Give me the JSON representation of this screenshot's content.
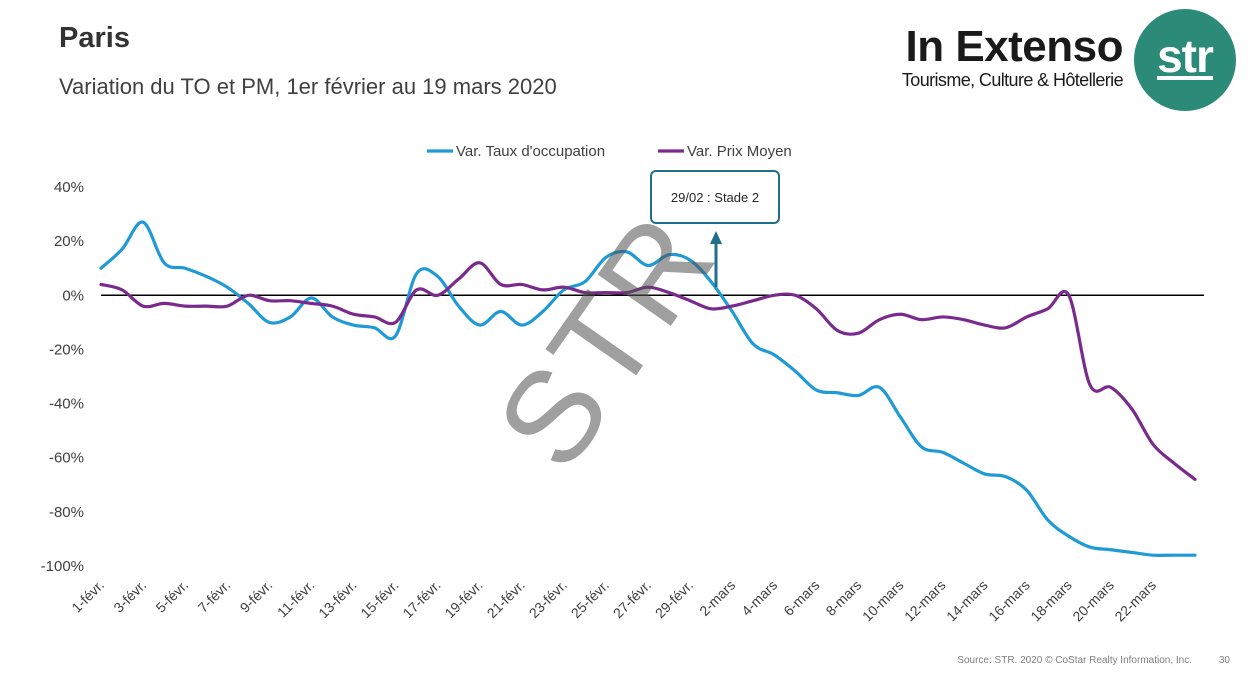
{
  "header": {
    "title": "Paris",
    "subtitle": "Variation du TO et PM, 1er février au 19 mars 2020"
  },
  "brand": {
    "name": "In Extenso",
    "tagline": "Tourisme, Culture & Hôtellerie",
    "logo_text": "str",
    "logo_color": "#2c8a78"
  },
  "watermark": "STR",
  "annotation": {
    "text": "29/02 : Stade 2",
    "at": "29-févr."
  },
  "footer": {
    "source": "Source: STR. 2020 © CoStar Realty Information, Inc.",
    "page": "30"
  },
  "chart_data": {
    "type": "line",
    "title": "",
    "legend_position": "top-center",
    "ylim": [
      -100,
      40
    ],
    "y_ticks": [
      "40%",
      "20%",
      "0%",
      "-20%",
      "-40%",
      "-60%",
      "-80%",
      "-100%"
    ],
    "x_tick_labels": [
      "1-févr.",
      "3-févr.",
      "5-févr.",
      "7-févr.",
      "9-févr.",
      "11-févr.",
      "13-févr.",
      "15-févr.",
      "17-févr.",
      "19-févr.",
      "21-févr.",
      "23-févr.",
      "25-févr.",
      "27-févr.",
      "29-févr.",
      "2-mars",
      "4-mars",
      "6-mars",
      "8-mars",
      "10-mars",
      "12-mars",
      "14-mars",
      "16-mars",
      "18-mars",
      "20-mars",
      "22-mars"
    ],
    "series": [
      {
        "name": "Var. Taux d'occupation",
        "color": "#1f9ad6",
        "values": [
          10,
          17,
          27,
          12,
          10,
          7,
          3,
          -3,
          -10,
          -8,
          -1,
          -8,
          -11,
          -12,
          -15,
          8,
          7,
          -4,
          -11,
          -6,
          -11,
          -6,
          2,
          5,
          14,
          16,
          11,
          15,
          13,
          5,
          -6,
          -18,
          -22,
          -28,
          -35,
          -36,
          -37,
          -34,
          -45,
          -56,
          -58,
          -62,
          -66,
          -67,
          -72,
          -83,
          -89,
          -93,
          -94,
          -95,
          -96,
          -96,
          -96
        ]
      },
      {
        "name": "Var. Prix Moyen",
        "color": "#7a2a8c",
        "values": [
          4,
          2,
          -4,
          -3,
          -4,
          -4,
          -4,
          0,
          -2,
          -2,
          -3,
          -4,
          -7,
          -8,
          -10,
          2,
          0,
          6,
          12,
          4,
          4,
          2,
          3,
          1,
          1,
          1,
          3,
          1,
          -2,
          -5,
          -4,
          -2,
          0,
          0,
          -5,
          -13,
          -14,
          -9,
          -7,
          -9,
          -8,
          -9,
          -11,
          -12,
          -8,
          -5,
          0,
          -33,
          -34,
          -42,
          -55,
          -62,
          -68
        ]
      }
    ]
  }
}
